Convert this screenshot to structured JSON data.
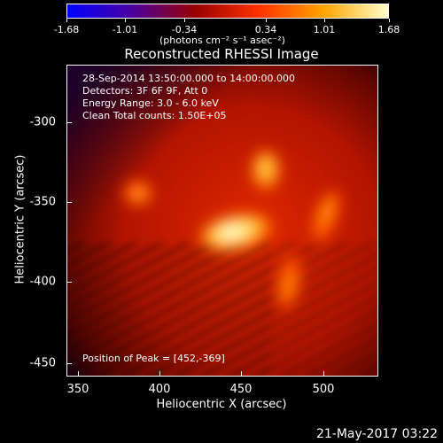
{
  "colorbar": {
    "ticks": [
      "-1.68",
      "-1.01",
      "-0.34",
      "0.34",
      "1.01",
      "1.68"
    ],
    "units": "(photons cm⁻² s⁻¹ asec⁻²)",
    "colormap": [
      "#0000ff",
      "#4a00a0",
      "#990000",
      "#ff3300",
      "#ffa500",
      "#ffffcc"
    ]
  },
  "image": {
    "title": "Reconstructed RHESSI Image",
    "annotations": [
      "28-Sep-2014 13:50:00.000 to 14:00:00.000",
      "Detectors: 3F 6F 9F, Att 0",
      "Energy Range: 3.0 - 6.0 keV",
      "Clean     Total counts: 1.50E+05"
    ],
    "peak_text": "Position of Peak = [452,-369]",
    "xlabel": "Heliocentric X (arcsec)",
    "ylabel": "Heliocentric Y (arcsec)",
    "x_ticks": [
      "350",
      "400",
      "450",
      "500"
    ],
    "y_ticks": [
      "-300",
      "-350",
      "-400",
      "-450"
    ],
    "sources": [
      "bright-core",
      "upper-knot",
      "left-knot",
      "right-arc",
      "lower-arc"
    ]
  },
  "footer": {
    "timestamp": "21-May-2017 03:22"
  }
}
